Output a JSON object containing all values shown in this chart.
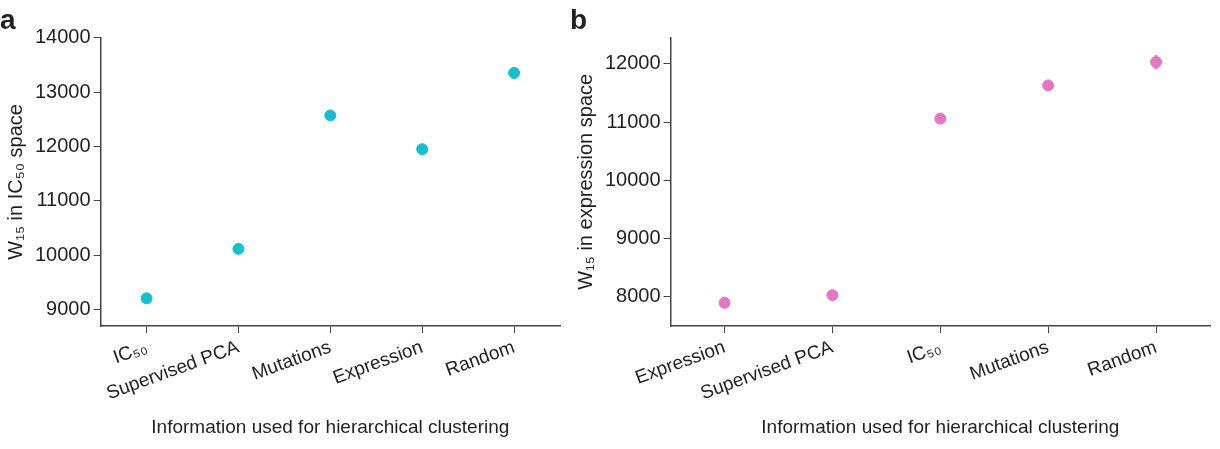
{
  "chart_data": [
    {
      "type": "scatter",
      "title": "a",
      "xlabel": "Information used for hierarchical clustering",
      "ylabel": "W₁₅ in IC₅₀ space",
      "categories": [
        "IC₅₀",
        "Supervised PCA",
        "Mutations",
        "Expression",
        "Random"
      ],
      "series": [
        {
          "color": "#17becf",
          "values": [
            9210,
            10120,
            12570,
            11950,
            13350
          ],
          "errors": [
            null,
            null,
            null,
            null,
            90
          ]
        }
      ],
      "ylim": [
        8700,
        14000
      ],
      "yticks": [
        9000,
        10000,
        11000,
        12000,
        13000,
        14000
      ],
      "grid": false,
      "legend": false,
      "marker": "circle"
    },
    {
      "type": "scatter",
      "title": "b",
      "xlabel": "Information used for hierarchical clustering",
      "ylabel": "W₁₅ in expression space",
      "categories": [
        "Expression",
        "Supervised PCA",
        "IC₅₀",
        "Mutations",
        "Random"
      ],
      "series": [
        {
          "color": "#e377c2",
          "values": [
            7900,
            8030,
            11060,
            11630,
            12030
          ],
          "errors": [
            null,
            null,
            null,
            null,
            120
          ]
        }
      ],
      "ylim": [
        7500,
        12450
      ],
      "yticks": [
        8000,
        9000,
        10000,
        11000,
        12000
      ],
      "grid": false,
      "legend": false,
      "marker": "circle"
    }
  ]
}
